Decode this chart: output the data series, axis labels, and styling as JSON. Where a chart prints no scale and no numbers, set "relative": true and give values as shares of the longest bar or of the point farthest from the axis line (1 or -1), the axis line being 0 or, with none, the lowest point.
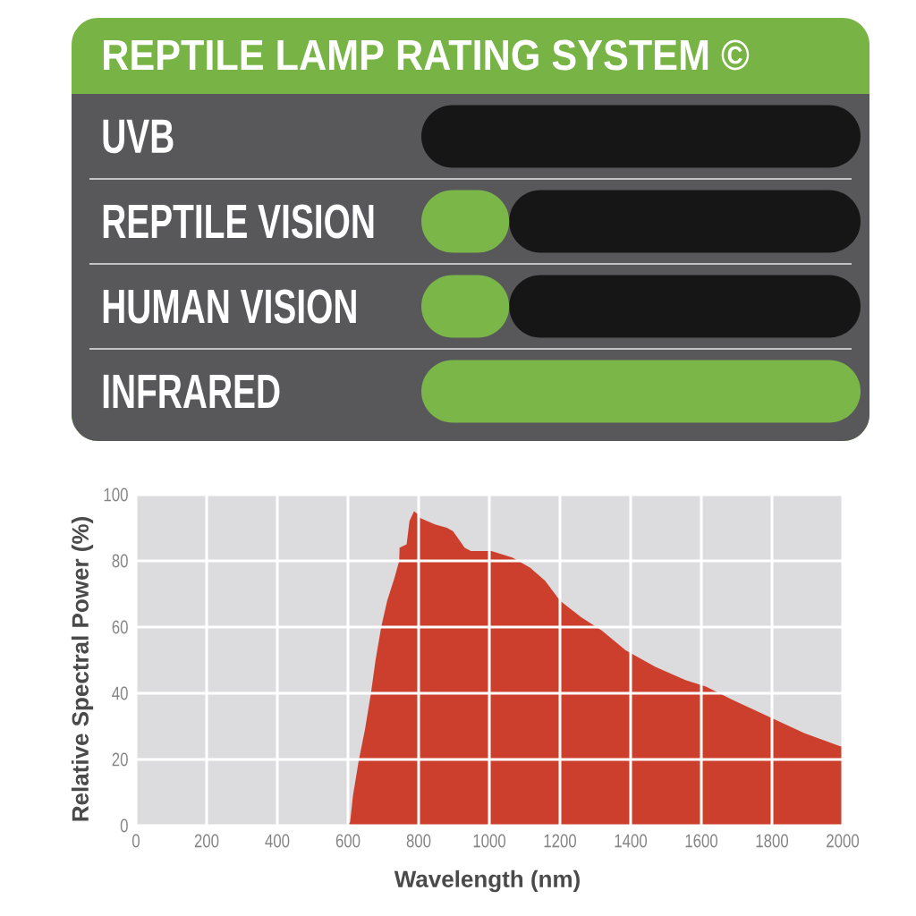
{
  "chart_data": [
    {
      "type": "bar",
      "orientation": "horizontal",
      "relative": true,
      "stacked": true,
      "title": "REPTILE LAMP RATING SYSTEM ©",
      "categories": [
        "UVB",
        "REPTILE VISION",
        "HUMAN VISION",
        "INFRARED"
      ],
      "series": [
        {
          "color": "#7ab648",
          "values": [
            0,
            0.2,
            0.2,
            1
          ]
        },
        {
          "color": "#161616",
          "values": [
            1,
            0.8,
            0.8,
            0
          ]
        }
      ]
    },
    {
      "type": "area",
      "xlabel": "Wavelength (nm)",
      "ylabel": "Relative Spectral Power (%)",
      "x": [
        590,
        606,
        614,
        631,
        648,
        665,
        678,
        694,
        711,
        732,
        745,
        746,
        766,
        774,
        787,
        799,
        804,
        846,
        880,
        897,
        930,
        948,
        1006,
        1065,
        1115,
        1158,
        1200,
        1260,
        1318,
        1386,
        1470,
        1555,
        1613,
        1689,
        1790,
        1891,
        1993,
        2000
      ],
      "values": [
        0,
        1,
        9,
        20,
        29,
        40,
        50,
        60,
        68,
        75,
        80,
        84,
        85,
        92,
        95,
        94,
        93,
        91,
        90,
        89,
        84,
        83,
        83,
        81,
        78,
        74,
        68,
        63,
        59,
        53,
        48,
        44,
        42,
        38,
        33,
        28,
        24,
        24
      ],
      "color": "#cc3f2c",
      "xlim": [
        0,
        2000
      ],
      "xticks": [
        0,
        200,
        400,
        600,
        800,
        1000,
        1200,
        1400,
        1600,
        1800,
        2000
      ],
      "ylim": [
        0,
        100
      ],
      "yticks": [
        0,
        20,
        40,
        60,
        80,
        100
      ],
      "grid": true
    }
  ]
}
